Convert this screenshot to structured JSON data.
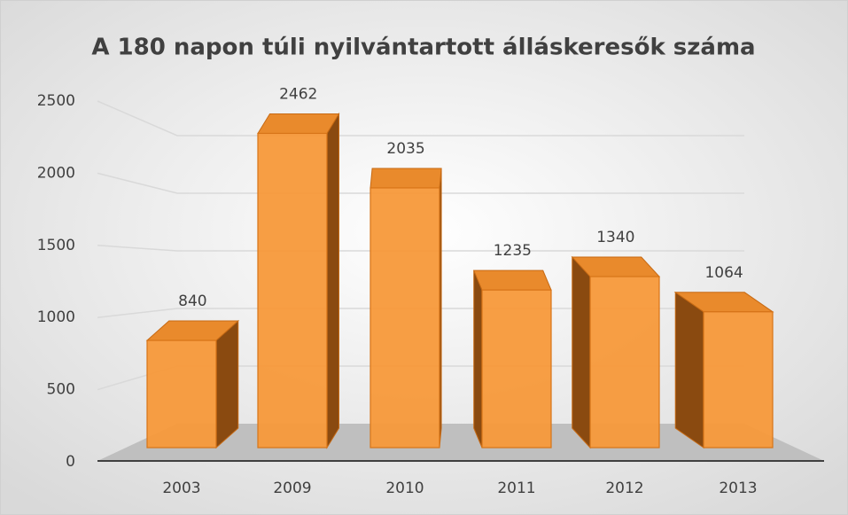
{
  "chart_data": {
    "type": "bar3d",
    "title": "A 180 napon túli nyilvántartott álláskeresők száma",
    "categories": [
      "2003",
      "2009",
      "2010",
      "2011",
      "2012",
      "2013"
    ],
    "values": [
      840,
      2462,
      2035,
      1235,
      1340,
      1064
    ],
    "color": "#f7993a",
    "ylim": [
      0,
      2500
    ],
    "yticks": [
      0,
      500,
      1000,
      1500,
      2000,
      2500
    ],
    "grid": true
  }
}
